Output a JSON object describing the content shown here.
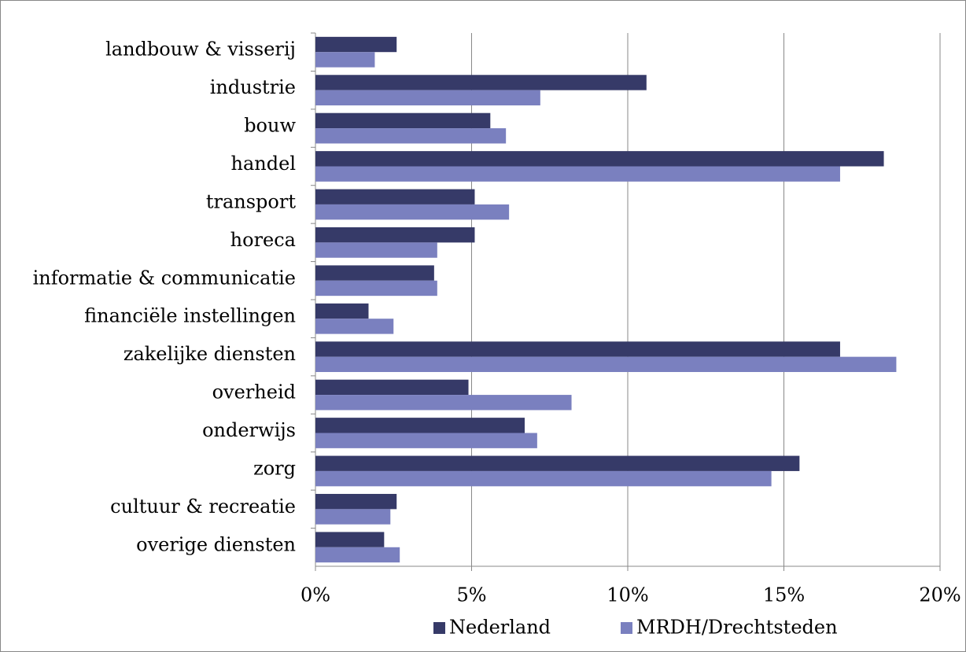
{
  "chart_data": {
    "type": "hbar",
    "categories": [
      "landbouw & visserij",
      "industrie",
      "bouw",
      "handel",
      "transport",
      "horeca",
      "informatie & communicatie",
      "financiële instellingen",
      "zakelijke diensten",
      "overheid",
      "onderwijs",
      "zorg",
      "cultuur & recreatie",
      "overige diensten"
    ],
    "series": [
      {
        "name": "Nederland",
        "color": "#363a68",
        "values": [
          2.6,
          10.6,
          5.6,
          18.2,
          5.1,
          5.1,
          3.8,
          1.7,
          16.8,
          4.9,
          6.7,
          15.5,
          2.6,
          2.2
        ]
      },
      {
        "name": "MRDH/Drechtsteden",
        "color": "#7a80bf",
        "values": [
          1.9,
          7.2,
          6.1,
          16.8,
          6.2,
          3.9,
          3.9,
          2.5,
          18.6,
          8.2,
          7.1,
          14.6,
          2.4,
          2.7
        ]
      }
    ],
    "xlim": [
      0,
      20
    ],
    "xticks": [
      {
        "value": 0,
        "label": "0%"
      },
      {
        "value": 5,
        "label": "5%"
      },
      {
        "value": 10,
        "label": "10%"
      },
      {
        "value": 15,
        "label": "15%"
      },
      {
        "value": 20,
        "label": "20%"
      }
    ],
    "grid": true,
    "legend": "bottom"
  }
}
